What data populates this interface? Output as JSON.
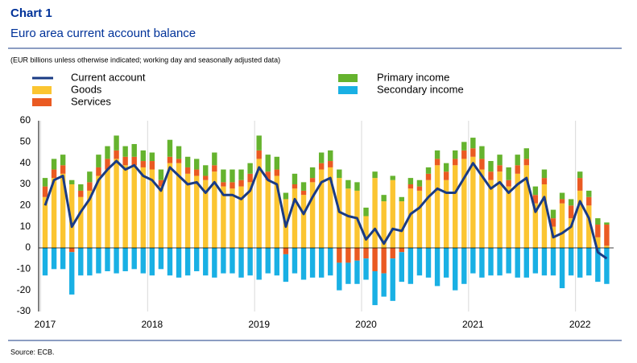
{
  "chart_data": {
    "type": "bar",
    "stacked": true,
    "title": "Chart 1",
    "subtitle": "Euro area current account balance",
    "note": "(EUR billions unless otherwise indicated; working day and seasonally adjusted data)",
    "source": "Source: ECB.",
    "categories": [
      "2017",
      null,
      null,
      null,
      null,
      null,
      null,
      null,
      null,
      null,
      null,
      null,
      "2018",
      null,
      null,
      null,
      null,
      null,
      null,
      null,
      null,
      null,
      null,
      null,
      "2019",
      null,
      null,
      null,
      null,
      null,
      null,
      null,
      null,
      null,
      null,
      null,
      "2020",
      null,
      null,
      null,
      null,
      null,
      null,
      null,
      null,
      null,
      null,
      null,
      "2021",
      null,
      null,
      null,
      null,
      null,
      null,
      null,
      null,
      null,
      null,
      null,
      "2022",
      null,
      null,
      null
    ],
    "series": [
      {
        "name": "Current account",
        "type": "line",
        "color": "#1a3b84",
        "values": [
          20,
          32,
          34,
          10,
          17,
          23,
          32,
          37,
          41,
          37,
          39,
          34,
          32,
          27,
          38,
          34,
          30,
          31,
          26,
          31,
          25,
          25,
          23,
          27,
          38,
          32,
          30,
          10,
          23,
          16,
          24,
          31,
          33,
          17,
          15,
          14,
          4,
          9,
          2,
          9,
          8,
          16,
          19,
          24,
          28,
          26,
          26,
          33,
          40,
          34,
          28,
          31,
          26,
          30,
          33,
          17,
          24,
          5,
          7,
          10,
          22,
          14,
          -2,
          -5
        ]
      },
      {
        "name": "Goods",
        "type": "bar",
        "color": "#fbc531",
        "values": [
          24,
          33,
          35,
          30,
          24,
          27,
          34,
          37,
          42,
          39,
          39,
          38,
          37,
          29,
          40,
          40,
          35,
          34,
          32,
          36,
          29,
          28,
          29,
          31,
          42,
          32,
          34,
          23,
          28,
          25,
          31,
          37,
          38,
          33,
          28,
          27,
          15,
          33,
          22,
          32,
          22,
          28,
          27,
          32,
          39,
          32,
          39,
          42,
          43,
          37,
          32,
          36,
          29,
          35,
          39,
          21,
          30,
          10,
          21,
          14,
          27,
          20,
          5,
          1
        ]
      },
      {
        "name": "Services",
        "type": "bar",
        "color": "#ea5a22",
        "values": [
          5,
          4,
          4,
          -2,
          3,
          4,
          4,
          5,
          4,
          4,
          4,
          3,
          4,
          3,
          3,
          2,
          3,
          3,
          2,
          3,
          2,
          3,
          3,
          4,
          4,
          4,
          3,
          -3,
          2,
          2,
          2,
          3,
          3,
          -7,
          -7,
          -6,
          -5,
          -11,
          -12,
          -5,
          -2,
          2,
          2,
          3,
          3,
          4,
          3,
          4,
          4,
          5,
          4,
          3,
          3,
          4,
          3,
          4,
          3,
          4,
          2,
          6,
          6,
          4,
          6,
          10
        ]
      },
      {
        "name": "Primary income",
        "type": "bar",
        "color": "#65b32e",
        "values": [
          4,
          5,
          5,
          2,
          3,
          5,
          6,
          6,
          7,
          5,
          6,
          5,
          4,
          5,
          8,
          6,
          5,
          5,
          5,
          6,
          6,
          6,
          5,
          5,
          7,
          8,
          6,
          3,
          5,
          4,
          5,
          5,
          5,
          4,
          4,
          4,
          4,
          3,
          3,
          2,
          2,
          3,
          3,
          3,
          4,
          4,
          4,
          4,
          5,
          6,
          5,
          5,
          6,
          5,
          5,
          4,
          4,
          4,
          3,
          3,
          3,
          3,
          3,
          1
        ]
      },
      {
        "name": "Secondary income",
        "type": "bar",
        "color": "#19b0e4",
        "values": [
          -13,
          -10,
          -10,
          -20,
          -13,
          -13,
          -12,
          -11,
          -12,
          -11,
          -10,
          -12,
          -13,
          -10,
          -13,
          -14,
          -13,
          -11,
          -13,
          -14,
          -12,
          -12,
          -14,
          -13,
          -15,
          -12,
          -13,
          -13,
          -12,
          -15,
          -14,
          -14,
          -13,
          -13,
          -10,
          -11,
          -10,
          -16,
          -11,
          -20,
          -14,
          -17,
          -13,
          -14,
          -18,
          -14,
          -20,
          -17,
          -12,
          -14,
          -13,
          -13,
          -12,
          -14,
          -14,
          -12,
          -13,
          -13,
          -19,
          -13,
          -14,
          -13,
          -16,
          -17
        ]
      }
    ],
    "ylim": [
      -30,
      60
    ],
    "yticks": [
      -30,
      -20,
      -10,
      0,
      10,
      20,
      30,
      40,
      50,
      60
    ],
    "grid": false
  }
}
